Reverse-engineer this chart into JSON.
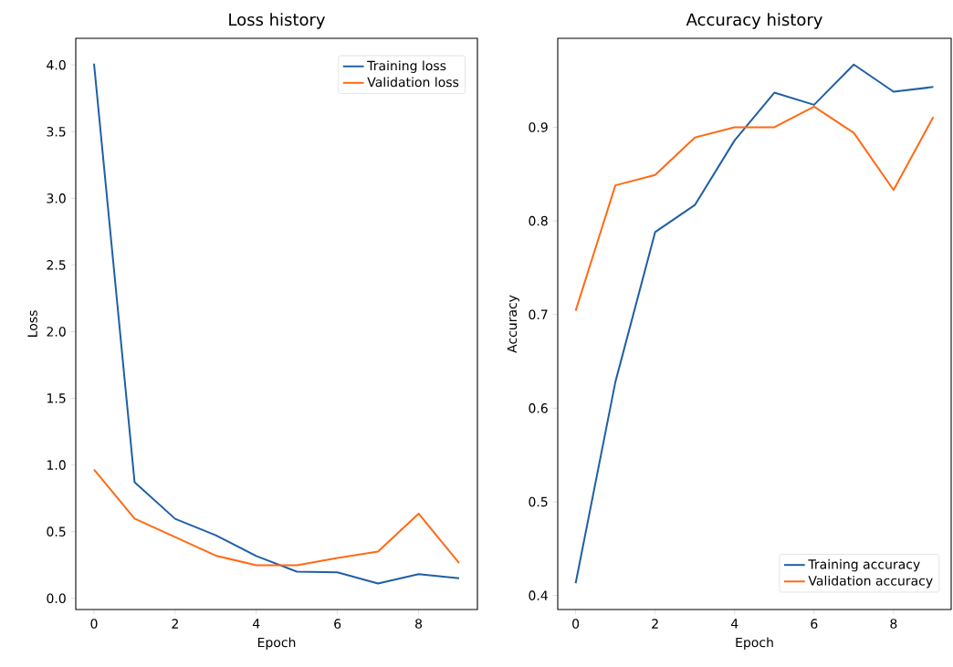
{
  "chart_data": [
    {
      "type": "line",
      "title": "Loss history",
      "xlabel": "Epoch",
      "ylabel": "Loss",
      "x": [
        0,
        1,
        2,
        3,
        4,
        5,
        6,
        7,
        8,
        9
      ],
      "series": [
        {
          "name": "Training loss",
          "color": "#1f5fa5",
          "values": [
            4.01,
            0.87,
            0.596,
            0.473,
            0.317,
            0.2,
            0.195,
            0.111,
            0.181,
            0.15
          ]
        },
        {
          "name": "Validation loss",
          "color": "#ff6a13",
          "values": [
            0.966,
            0.598,
            0.459,
            0.32,
            0.248,
            0.248,
            0.303,
            0.351,
            0.635,
            0.264
          ]
        }
      ],
      "xlim": [
        -0.45,
        9.45
      ],
      "ylim": [
        -0.084,
        4.2
      ],
      "xticks": [
        0,
        2,
        4,
        6,
        8
      ],
      "yticks": [
        {
          "value": 0,
          "label": "0.0"
        },
        0.5,
        {
          "value": 1,
          "label": "1.0"
        },
        1.5,
        {
          "value": 2,
          "label": "2.0"
        },
        2.5,
        {
          "value": 3,
          "label": "3.0"
        },
        3.5,
        {
          "value": 4,
          "label": "4.0"
        }
      ],
      "legend": "top right",
      "grid": false,
      "marker": "none",
      "line_style": "solid"
    },
    {
      "type": "line",
      "title": "Accuracy history",
      "xlabel": "Epoch",
      "ylabel": "Accuracy",
      "x": [
        0,
        1,
        2,
        3,
        4,
        5,
        6,
        7,
        8,
        9
      ],
      "series": [
        {
          "name": "Training accuracy",
          "color": "#1f5fa5",
          "values": [
            0.413,
            0.628,
            0.788,
            0.817,
            0.886,
            0.937,
            0.924,
            0.967,
            0.938,
            0.943
          ]
        },
        {
          "name": "Validation accuracy",
          "color": "#ff6a13",
          "values": [
            0.704,
            0.838,
            0.849,
            0.889,
            0.9,
            0.9,
            0.922,
            0.894,
            0.833,
            0.911
          ]
        }
      ],
      "xlim": [
        -0.45,
        9.45
      ],
      "ylim": [
        0.385,
        0.995
      ],
      "xticks": [
        0,
        2,
        4,
        6,
        8
      ],
      "yticks": [
        0.4,
        0.5,
        0.6,
        0.7,
        0.8,
        0.9
      ],
      "legend": "bottom right",
      "grid": false,
      "marker": "none",
      "line_style": "solid"
    }
  ]
}
